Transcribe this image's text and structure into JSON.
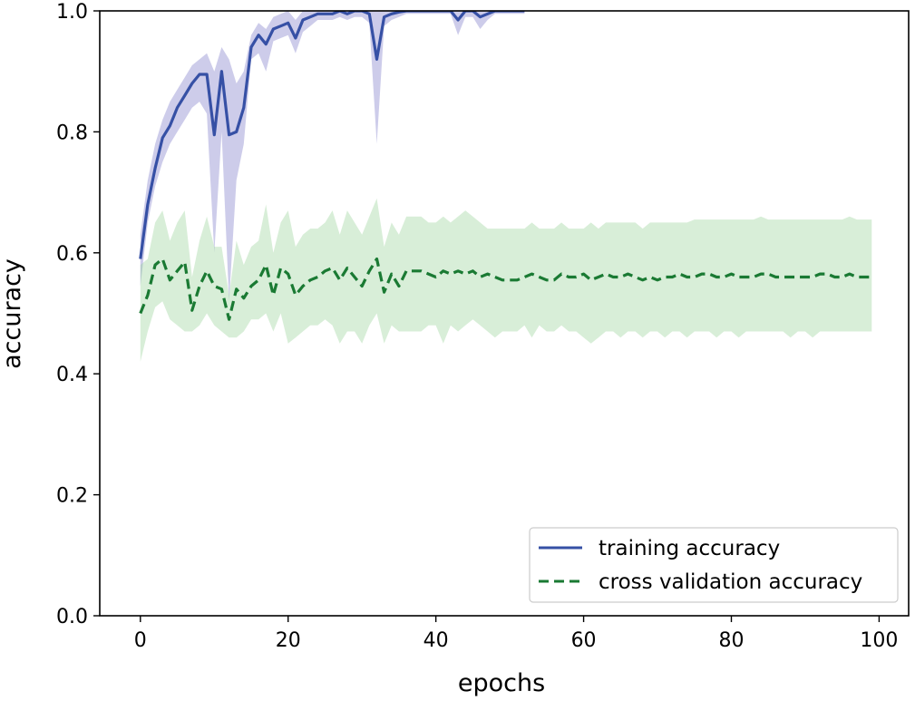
{
  "chart_data": {
    "type": "line",
    "title": "",
    "xlabel": "epochs",
    "ylabel": "accuracy",
    "xlim": [
      -5.5,
      104
    ],
    "ylim": [
      0.0,
      1.0
    ],
    "x_ticks": [
      0,
      20,
      40,
      60,
      80,
      100
    ],
    "x_tick_labels": [
      "0",
      "20",
      "40",
      "60",
      "80",
      "100"
    ],
    "y_ticks": [
      0.0,
      0.2,
      0.4,
      0.6,
      0.8,
      1.0
    ],
    "y_tick_labels": [
      "0.0",
      "0.2",
      "0.4",
      "0.6",
      "0.8",
      "1.0"
    ],
    "grid": false,
    "legend_position": "bottom-right",
    "series": [
      {
        "name": "training accuracy",
        "style": "solid",
        "color": "#3650a5",
        "band_color": "#6f6cc4",
        "x": [
          0,
          1,
          2,
          3,
          4,
          5,
          6,
          7,
          8,
          9,
          10,
          11,
          12,
          13,
          14,
          15,
          16,
          17,
          18,
          19,
          20,
          21,
          22,
          23,
          24,
          25,
          26,
          27,
          28,
          29,
          30,
          31,
          32,
          33,
          34,
          35,
          36,
          37,
          38,
          39,
          40,
          41,
          42,
          43,
          44,
          45,
          46,
          47,
          48,
          49,
          50,
          51,
          52
        ],
        "values": [
          0.59,
          0.68,
          0.74,
          0.79,
          0.81,
          0.84,
          0.86,
          0.88,
          0.895,
          0.895,
          0.795,
          0.9,
          0.795,
          0.8,
          0.84,
          0.94,
          0.96,
          0.945,
          0.97,
          0.975,
          0.98,
          0.955,
          0.985,
          0.99,
          0.995,
          0.995,
          0.995,
          1.0,
          0.995,
          1.0,
          1.0,
          0.995,
          0.92,
          0.99,
          0.995,
          0.998,
          1.0,
          1.0,
          1.0,
          1.0,
          1.0,
          1.0,
          1.0,
          0.985,
          1.0,
          1.0,
          0.99,
          0.995,
          1.0,
          1.0,
          1.0,
          1.0,
          1.0
        ],
        "lower": [
          0.545,
          0.65,
          0.71,
          0.75,
          0.78,
          0.8,
          0.82,
          0.84,
          0.85,
          0.83,
          0.6,
          0.8,
          0.52,
          0.72,
          0.78,
          0.92,
          0.93,
          0.9,
          0.95,
          0.955,
          0.96,
          0.93,
          0.965,
          0.975,
          0.985,
          0.985,
          0.985,
          0.99,
          0.985,
          0.99,
          0.99,
          0.98,
          0.78,
          0.975,
          0.985,
          0.99,
          0.995,
          0.995,
          0.995,
          0.995,
          0.995,
          0.995,
          0.995,
          0.96,
          0.99,
          0.99,
          0.97,
          0.985,
          0.995,
          0.995,
          0.995,
          0.995,
          0.995
        ],
        "upper": [
          0.63,
          0.72,
          0.78,
          0.82,
          0.85,
          0.87,
          0.89,
          0.91,
          0.92,
          0.93,
          0.9,
          0.94,
          0.92,
          0.88,
          0.9,
          0.96,
          0.98,
          0.97,
          0.99,
          0.995,
          1.0,
          0.985,
          1.0,
          1.0,
          1.0,
          1.0,
          1.0,
          1.0,
          1.0,
          1.0,
          1.0,
          1.0,
          1.0,
          1.0,
          1.0,
          1.0,
          1.0,
          1.0,
          1.0,
          1.0,
          1.0,
          1.0,
          1.0,
          1.0,
          1.0,
          1.0,
          1.0,
          1.0,
          1.0,
          1.0,
          1.0,
          1.0,
          1.0
        ]
      },
      {
        "name": "cross validation accuracy",
        "style": "dashed",
        "color": "#1a7a33",
        "band_color": "#8fcf8f",
        "x": [
          0,
          1,
          2,
          3,
          4,
          5,
          6,
          7,
          8,
          9,
          10,
          11,
          12,
          13,
          14,
          15,
          16,
          17,
          18,
          19,
          20,
          21,
          22,
          23,
          24,
          25,
          26,
          27,
          28,
          29,
          30,
          31,
          32,
          33,
          34,
          35,
          36,
          37,
          38,
          39,
          40,
          41,
          42,
          43,
          44,
          45,
          46,
          47,
          48,
          49,
          50,
          51,
          52,
          53,
          54,
          55,
          56,
          57,
          58,
          59,
          60,
          61,
          62,
          63,
          64,
          65,
          66,
          67,
          68,
          69,
          70,
          71,
          72,
          73,
          74,
          75,
          76,
          77,
          78,
          79,
          80,
          81,
          82,
          83,
          84,
          85,
          86,
          87,
          88,
          89,
          90,
          91,
          92,
          93,
          94,
          95,
          96,
          97,
          98,
          99
        ],
        "values": [
          0.5,
          0.53,
          0.58,
          0.59,
          0.555,
          0.57,
          0.585,
          0.505,
          0.545,
          0.57,
          0.545,
          0.54,
          0.49,
          0.54,
          0.525,
          0.545,
          0.555,
          0.58,
          0.53,
          0.575,
          0.565,
          0.53,
          0.545,
          0.555,
          0.56,
          0.57,
          0.575,
          0.555,
          0.575,
          0.56,
          0.545,
          0.57,
          0.59,
          0.535,
          0.565,
          0.545,
          0.57,
          0.57,
          0.57,
          0.565,
          0.56,
          0.57,
          0.565,
          0.57,
          0.565,
          0.57,
          0.56,
          0.565,
          0.56,
          0.555,
          0.555,
          0.555,
          0.56,
          0.565,
          0.56,
          0.555,
          0.555,
          0.565,
          0.56,
          0.56,
          0.565,
          0.555,
          0.56,
          0.565,
          0.56,
          0.56,
          0.565,
          0.56,
          0.555,
          0.56,
          0.555,
          0.56,
          0.56,
          0.565,
          0.56,
          0.56,
          0.565,
          0.565,
          0.56,
          0.56,
          0.565,
          0.56,
          0.56,
          0.56,
          0.565,
          0.565,
          0.56,
          0.56,
          0.56,
          0.56,
          0.56,
          0.56,
          0.565,
          0.565,
          0.56,
          0.56,
          0.565,
          0.56,
          0.56,
          0.56
        ],
        "lower": [
          0.42,
          0.47,
          0.51,
          0.52,
          0.49,
          0.48,
          0.47,
          0.47,
          0.48,
          0.5,
          0.48,
          0.47,
          0.46,
          0.46,
          0.47,
          0.49,
          0.49,
          0.5,
          0.47,
          0.5,
          0.45,
          0.46,
          0.47,
          0.48,
          0.48,
          0.49,
          0.48,
          0.45,
          0.47,
          0.47,
          0.45,
          0.48,
          0.5,
          0.45,
          0.48,
          0.47,
          0.47,
          0.47,
          0.47,
          0.48,
          0.48,
          0.45,
          0.48,
          0.47,
          0.48,
          0.49,
          0.48,
          0.47,
          0.46,
          0.47,
          0.47,
          0.47,
          0.48,
          0.46,
          0.48,
          0.47,
          0.47,
          0.48,
          0.47,
          0.47,
          0.46,
          0.45,
          0.46,
          0.47,
          0.47,
          0.46,
          0.47,
          0.47,
          0.46,
          0.47,
          0.47,
          0.46,
          0.47,
          0.47,
          0.46,
          0.47,
          0.47,
          0.47,
          0.46,
          0.47,
          0.47,
          0.46,
          0.47,
          0.47,
          0.47,
          0.47,
          0.47,
          0.47,
          0.46,
          0.47,
          0.47,
          0.46,
          0.47,
          0.47,
          0.47,
          0.47,
          0.47,
          0.47,
          0.47,
          0.47
        ],
        "upper": [
          0.58,
          0.59,
          0.65,
          0.67,
          0.62,
          0.65,
          0.67,
          0.56,
          0.62,
          0.66,
          0.61,
          0.61,
          0.53,
          0.62,
          0.58,
          0.61,
          0.62,
          0.68,
          0.6,
          0.65,
          0.67,
          0.61,
          0.63,
          0.64,
          0.64,
          0.65,
          0.67,
          0.63,
          0.67,
          0.65,
          0.63,
          0.66,
          0.69,
          0.61,
          0.65,
          0.63,
          0.66,
          0.66,
          0.66,
          0.65,
          0.65,
          0.66,
          0.65,
          0.66,
          0.67,
          0.66,
          0.65,
          0.64,
          0.64,
          0.64,
          0.64,
          0.64,
          0.64,
          0.65,
          0.64,
          0.64,
          0.64,
          0.65,
          0.64,
          0.64,
          0.64,
          0.65,
          0.64,
          0.65,
          0.65,
          0.65,
          0.65,
          0.65,
          0.64,
          0.65,
          0.65,
          0.65,
          0.65,
          0.65,
          0.65,
          0.655,
          0.655,
          0.655,
          0.655,
          0.655,
          0.655,
          0.655,
          0.655,
          0.655,
          0.66,
          0.655,
          0.655,
          0.655,
          0.655,
          0.655,
          0.655,
          0.655,
          0.655,
          0.655,
          0.655,
          0.655,
          0.66,
          0.655,
          0.655,
          0.655
        ]
      }
    ]
  }
}
